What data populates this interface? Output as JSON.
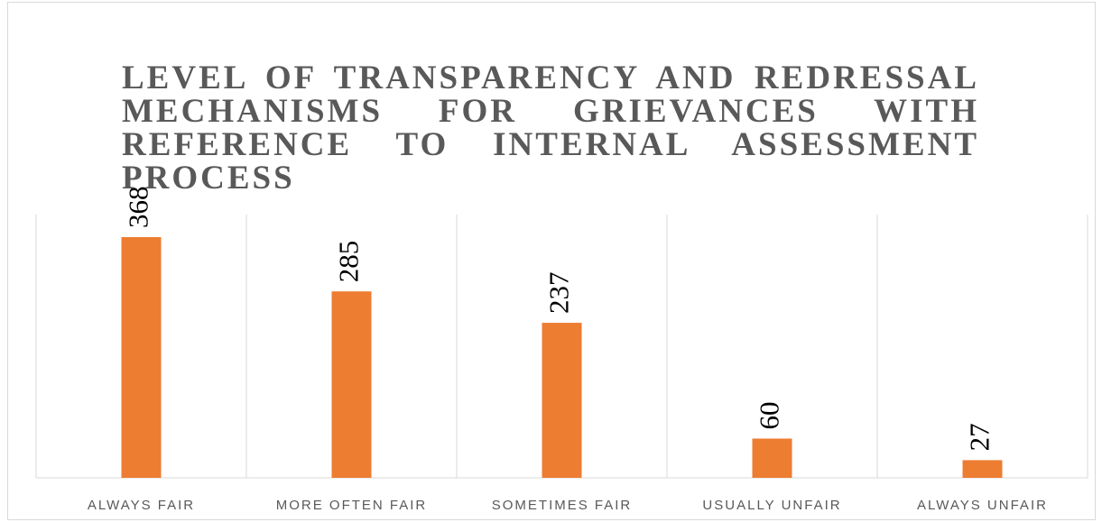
{
  "chart_data": {
    "type": "bar",
    "title": "LEVEL OF TRANSPARENCY AND REDRESSAL MECHANISMS FOR GRIEVANCES WITH REFERENCE TO INTERNAL ASSESSMENT PROCESS",
    "categories": [
      "ALWAYS FAIR",
      "MORE OFTEN FAIR",
      "SOMETIMES FAIR",
      "USUALLY UNFAIR",
      "ALWAYS UNFAIR"
    ],
    "values": [
      368,
      285,
      237,
      60,
      27
    ],
    "color": "#ed7d31"
  }
}
